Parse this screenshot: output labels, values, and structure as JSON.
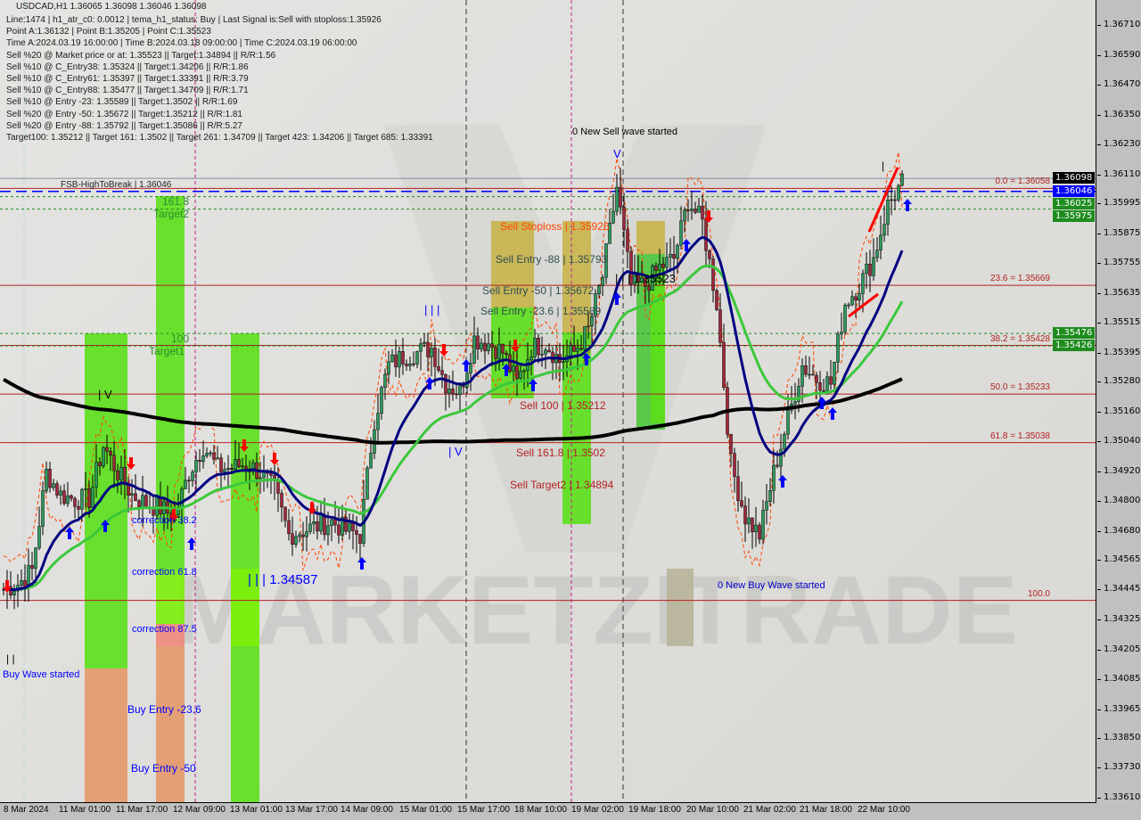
{
  "header": {
    "symbol_line": "USDCAD,H1  1.36065 1.36098 1.36046 1.36098",
    "lines": [
      "Line:1474 | h1_atr_c0: 0.0012 | tema_h1_status: Buy | Last Signal is:Sell with stoploss:1.35926",
      "Point A:1.36132 | Point B:1.35205 | Point C:1.35523",
      "Time A:2024.03.19 16:00:00 | Time B:2024.03.18 09:00:00 | Time C:2024.03.19 06:00:00",
      "Sell %20 @ Market price or at: 1.35523 || Target:1.34894 || R/R:1.56",
      "Sell %10 @ C_Entry38: 1.35324 || Target:1.34206 || R/R:1.86",
      "Sell %10 @ C_Entry61: 1.35397 || Target:1.33391 || R/R:3.79",
      "Sell %10 @ C_Entry88: 1.35477 || Target:1.34709 || R/R:1.71",
      "Sell %10 @ Entry -23: 1.35589 || Target:1.3502 || R/R:1.69",
      "Sell %20 @ Entry -50: 1.35672 || Target:1.35212 || R/R:1.81",
      "Sell %20 @ Entry -88: 1.35792 || Target:1.35086 || R/R:5.27",
      "Target100: 1.35212 || Target 161: 1.3502 || Target 261: 1.34709 || Target 423: 1.34206 || Target 685: 1.33391"
    ]
  },
  "chart_labels": {
    "fsb": "FSB-HighToBreak | 1.36046",
    "t2a": "161.8",
    "t2b": "Target2",
    "t1a": "100",
    "t1b": "Target1",
    "new_sell": "0 New Sell wave started",
    "new_buy": "0 New Buy Wave started",
    "buy_wave": "Buy Wave started",
    "sell_stoploss": "Sell Stoploss | 1.35926",
    "sell_entry88": "Sell Entry -88 | 1.35793",
    "sell_entry50": "Sell Entry -50 | 1.35672",
    "point_c": "| | | 1.35523",
    "sell_entry23": "Sell Entry -23.6 | 1.35589",
    "sell100": "Sell 100 | 1.35212",
    "sell161": "Sell 161.8 | 1.3502",
    "sell_t2": "Sell Target2 | 1.34894",
    "corr38": "correction 38.2",
    "corr61": "correction 61.8",
    "corr87": "correction 87.5",
    "buy_entry23": "Buy Entry -23.6",
    "buy_entry50": "Buy Entry -50",
    "buy_level": "| | | 1.34587",
    "wave_iii": "| | |",
    "wave_iv": "| V",
    "wave_iv2": "| V",
    "wave_v": "V",
    "wave_i": "|",
    "wave_ii": "| |",
    "watermark": "MARKETZITRADE"
  },
  "fib_levels": [
    {
      "label": "0.0 = 1.36058",
      "price": 1.36058
    },
    {
      "label": "23.6 = 1.35669",
      "price": 1.35669
    },
    {
      "label": "38.2 = 1.35428",
      "price": 1.35428
    },
    {
      "label": "50.0 = 1.35233",
      "price": 1.35233
    },
    {
      "label": "61.8 = 1.35038",
      "price": 1.35038
    },
    {
      "label": "100.0",
      "price": 1.34405
    }
  ],
  "price_badges": [
    {
      "text": "1.36098",
      "price": 1.36098,
      "color": "#000000"
    },
    {
      "text": "1.36046",
      "price": 1.36046,
      "color": "#0000ff"
    },
    {
      "text": "1.36025",
      "price": 1.36025,
      "color": "#1e8c1e"
    },
    {
      "text": "1.35975",
      "price": 1.35975,
      "color": "#1e8c1e"
    },
    {
      "text": "1.35476",
      "price": 1.35476,
      "color": "#1e8c1e"
    },
    {
      "text": "1.35426",
      "price": 1.35426,
      "color": "#1e8c1e"
    }
  ],
  "colors": {
    "bull": "#2e9a5e",
    "bear": "#a0283c",
    "ma_long": "#000000",
    "ma_mid": "#3cc83c",
    "ma_fast": "#000080",
    "stop": "#ff4500",
    "fib": "#b22222",
    "zone_green": "#5ce01a",
    "zone_salmon": "#e49868",
    "zone_khaki": "#c8b44a"
  },
  "chart_data": {
    "type": "candlestick",
    "symbol": "USDCAD",
    "timeframe": "H1",
    "ylim": [
      1.3361,
      1.3677
    ],
    "y_ticks": [
      "1.36710",
      "1.36590",
      "1.36470",
      "1.36350",
      "1.36230",
      "1.36110",
      "1.35995",
      "1.35875",
      "1.35755",
      "1.35635",
      "1.35515",
      "1.35395",
      "1.35280",
      "1.35160",
      "1.35040",
      "1.34920",
      "1.34800",
      "1.34680",
      "1.34565",
      "1.34445",
      "1.34325",
      "1.34205",
      "1.34085",
      "1.33965",
      "1.33850",
      "1.33730",
      "1.33610"
    ],
    "x_ticks": [
      "8 Mar 2024",
      "11 Mar 01:00",
      "11 Mar 17:00",
      "12 Mar 09:00",
      "13 Mar 01:00",
      "13 Mar 17:00",
      "14 Mar 09:00",
      "15 Mar 01:00",
      "15 Mar 17:00",
      "18 Mar 10:00",
      "19 Mar 02:00",
      "19 Mar 18:00",
      "20 Mar 10:00",
      "21 Mar 02:00",
      "21 Mar 18:00",
      "22 Mar 10:00"
    ],
    "close_every_4_bars": [
      1.34451,
      1.34471,
      1.34525,
      1.34918,
      1.34829,
      1.34811,
      1.34811,
      1.35026,
      1.34918,
      1.34829,
      1.34793,
      1.34775,
      1.3474,
      1.34918,
      1.35026,
      1.34936,
      1.34936,
      1.34954,
      1.34918,
      1.34847,
      1.34668,
      1.34686,
      1.34704,
      1.34722,
      1.34686,
      1.34668,
      1.35133,
      1.35348,
      1.35383,
      1.35401,
      1.35419,
      1.35276,
      1.3524,
      1.35455,
      1.35437,
      1.35401,
      1.35276,
      1.35419,
      1.35437,
      1.35365,
      1.35401,
      1.35491,
      1.35705,
      1.36063,
      1.35669,
      1.35669,
      1.35741,
      1.35777,
      1.36009,
      1.3592,
      1.35598,
      1.34954,
      1.3474,
      1.34668,
      1.34918,
      1.35133,
      1.35348,
      1.35294,
      1.35276,
      1.35598,
      1.35669,
      1.35777,
      1.35991,
      1.36081
    ],
    "last": {
      "open": 1.36065,
      "high": 1.36098,
      "low": 1.36046,
      "close": 1.36098
    }
  }
}
